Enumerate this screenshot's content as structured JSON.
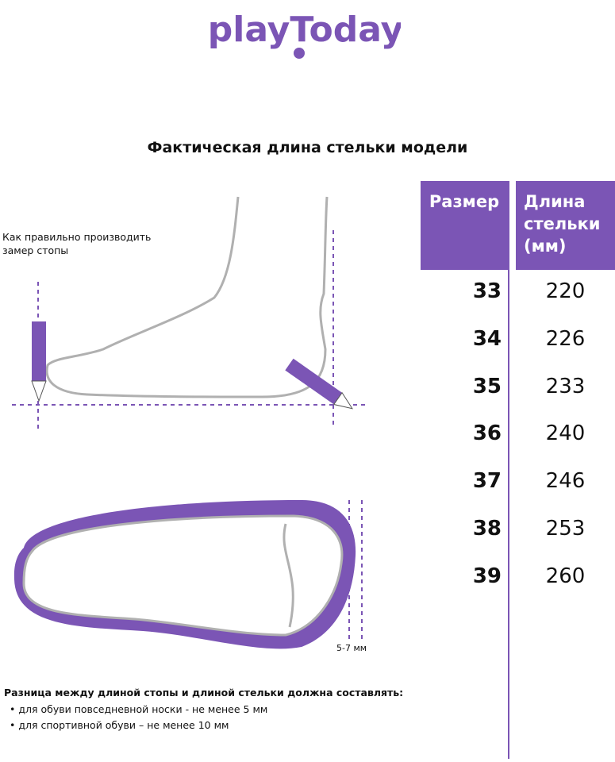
{
  "brand": {
    "logo_text": "playToday",
    "color": "#7b55b5"
  },
  "title": "Фактическая длина стельки модели",
  "hint": [
    "Как правильно производить",
    "замер стопы"
  ],
  "table": {
    "headers": {
      "size": "Размер",
      "length": [
        "Длина",
        "стельки",
        "(мм)"
      ]
    },
    "rows": [
      {
        "size": "33",
        "length": "220"
      },
      {
        "size": "34",
        "length": "226"
      },
      {
        "size": "35",
        "length": "233"
      },
      {
        "size": "36",
        "length": "240"
      },
      {
        "size": "37",
        "length": "246"
      },
      {
        "size": "38",
        "length": "253"
      },
      {
        "size": "39",
        "length": "260"
      }
    ]
  },
  "gap_label": "5-7 мм",
  "note": {
    "heading": "Разница между длиной стопы и длиной стельки должна составлять:",
    "bullets": [
      "•  для обуви повседневной носки -  не менее 5 мм",
      "•  для спортивной обуви – не менее 10 мм"
    ]
  }
}
